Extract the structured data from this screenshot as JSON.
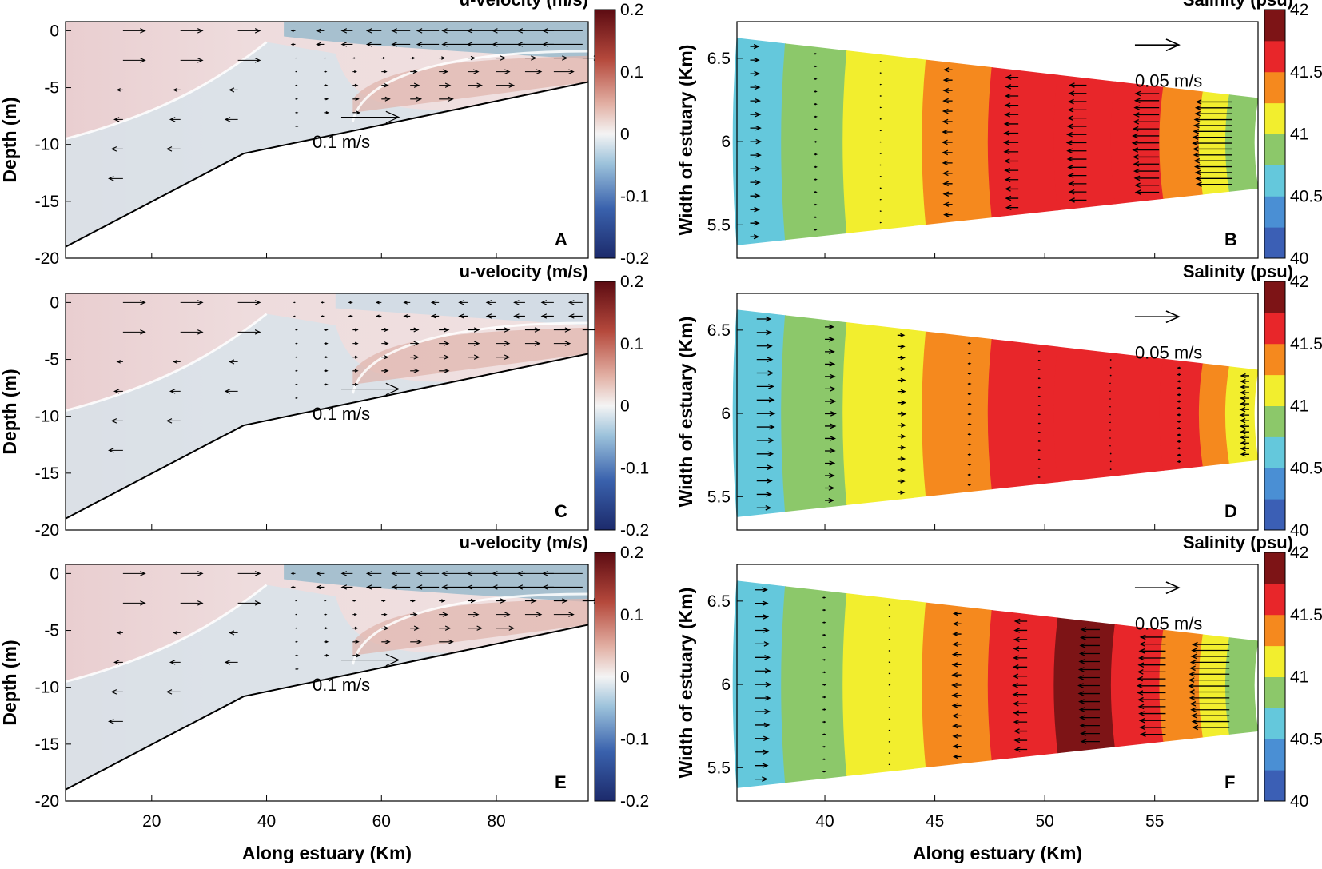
{
  "figure": {
    "xlabel": "Along estuary (Km)",
    "panels": [
      {
        "id": "A",
        "chart_data": {
          "type": "heatmap",
          "variable": "u-velocity (m/s)",
          "ylabel": "Depth (m)",
          "xlim": [
            5,
            96
          ],
          "ylim": [
            -20,
            0.8
          ],
          "yticks": [
            "0",
            "-5",
            "-10",
            "-15",
            "-20"
          ],
          "yticks_v": [
            0,
            -5,
            -10,
            -15,
            -20
          ],
          "xticks": [
            "20",
            "40",
            "60",
            "80"
          ],
          "xticks_v": [
            20,
            40,
            60,
            80
          ],
          "show_xticks": false,
          "bottom_profile": [
            [
              5,
              -19
            ],
            [
              36,
              -10.8
            ],
            [
              96,
              -4.5
            ]
          ],
          "colorbar_title": "u-velocity (m/s)",
          "colorbar_ticks": [
            "0.2",
            "0.1",
            "0",
            "-0.1",
            "-0.2"
          ],
          "colorbar_ticks_v": [
            0.2,
            0.1,
            0,
            -0.1,
            -0.2
          ],
          "colorbar_range": [
            -0.2,
            0.2
          ],
          "reference_vector_label": "0.1 m/s",
          "scenario": "A",
          "panel_label": "A"
        }
      },
      {
        "id": "B",
        "chart_data": {
          "type": "heatmap",
          "variable": "Salinity (psu)",
          "ylabel": "Width of estuary (Km)",
          "xlim": [
            36,
            59.7
          ],
          "ylim": [
            5.3,
            6.72
          ],
          "yticks": [
            "6.5",
            "6",
            "5.5"
          ],
          "yticks_v": [
            6.5,
            6,
            5.5
          ],
          "xticks": [
            "40",
            "45",
            "50",
            "55"
          ],
          "xticks_v": [
            40,
            45,
            50,
            55
          ],
          "show_xticks": false,
          "colorbar_title": "Salinity (psu)",
          "colorbar_ticks": [
            "42",
            "41.5",
            "41",
            "40.5",
            "40"
          ],
          "colorbar_ticks_v": [
            42,
            41.5,
            41,
            40.5,
            40
          ],
          "colorbar_range": [
            40,
            42
          ],
          "colorbar_levels": [
            "#3b5fb5",
            "#4a8fd4",
            "#64c8dc",
            "#8cc86a",
            "#f2ee2e",
            "#f5891e",
            "#e8262a",
            "#7d1416"
          ],
          "reference_vector_label": "0.05 m/s",
          "salinity_bands": [
            40.5,
            40.75,
            41.0,
            41.25,
            41.5,
            41.5,
            41.5,
            41.25,
            41.0,
            40.75
          ],
          "vector_columns": [
            {
              "x": 36.6,
              "len": 0.6,
              "dir": 1
            },
            {
              "x": 39.5,
              "len": 0.15,
              "dir": 1
            },
            {
              "x": 42.5,
              "len": 0.05,
              "dir": 1
            },
            {
              "x": 45.8,
              "len": 0.55,
              "dir": -1
            },
            {
              "x": 48.8,
              "len": 0.8,
              "dir": -1
            },
            {
              "x": 51.9,
              "len": 1.1,
              "dir": -1
            },
            {
              "x": 55.2,
              "len": 1.5,
              "dir": -1
            },
            {
              "x": 58.5,
              "len": 2.2,
              "dir": -1
            }
          ],
          "panel_label": "B"
        }
      },
      {
        "id": "C",
        "chart_data": {
          "type": "heatmap",
          "variable": "u-velocity (m/s)",
          "ylabel": "Depth (m)",
          "xlim": [
            5,
            96
          ],
          "ylim": [
            -20,
            0.8
          ],
          "yticks": [
            "0",
            "-5",
            "-10",
            "-15",
            "-20"
          ],
          "yticks_v": [
            0,
            -5,
            -10,
            -15,
            -20
          ],
          "xticks": [
            "20",
            "40",
            "60",
            "80"
          ],
          "xticks_v": [
            20,
            40,
            60,
            80
          ],
          "show_xticks": false,
          "bottom_profile": [
            [
              5,
              -19
            ],
            [
              36,
              -10.8
            ],
            [
              96,
              -4.5
            ]
          ],
          "colorbar_title": "u-velocity (m/s)",
          "colorbar_ticks": [
            "0.2",
            "0.1",
            "0",
            "-0.1",
            "-0.2"
          ],
          "colorbar_ticks_v": [
            0.2,
            0.1,
            0,
            -0.1,
            -0.2
          ],
          "colorbar_range": [
            -0.2,
            0.2
          ],
          "reference_vector_label": "0.1 m/s",
          "scenario": "C",
          "panel_label": "C"
        }
      },
      {
        "id": "D",
        "chart_data": {
          "type": "heatmap",
          "variable": "Salinity (psu)",
          "ylabel": "Width of estuary (Km)",
          "xlim": [
            36,
            59.7
          ],
          "ylim": [
            5.3,
            6.72
          ],
          "yticks": [
            "6.5",
            "6",
            "5.5"
          ],
          "yticks_v": [
            6.5,
            6,
            5.5
          ],
          "xticks": [
            "40",
            "45",
            "50",
            "55"
          ],
          "xticks_v": [
            40,
            45,
            50,
            55
          ],
          "show_xticks": false,
          "colorbar_title": "Salinity (psu)",
          "colorbar_ticks": [
            "42",
            "41.5",
            "41",
            "40.5",
            "40"
          ],
          "colorbar_ticks_v": [
            42,
            41.5,
            41,
            40.5,
            40
          ],
          "colorbar_range": [
            40,
            42
          ],
          "colorbar_levels": [
            "#3b5fb5",
            "#4a8fd4",
            "#64c8dc",
            "#8cc86a",
            "#f2ee2e",
            "#f5891e",
            "#e8262a",
            "#7d1416"
          ],
          "reference_vector_label": "0.05 m/s",
          "salinity_bands": [
            40.5,
            40.75,
            41.0,
            41.25,
            41.5,
            41.5,
            41.5,
            41.5,
            41.25,
            41.0
          ],
          "vector_columns": [
            {
              "x": 36.9,
              "len": 1.0,
              "dir": 1
            },
            {
              "x": 40.0,
              "len": 0.6,
              "dir": 1
            },
            {
              "x": 43.3,
              "len": 0.45,
              "dir": 1
            },
            {
              "x": 46.5,
              "len": 0.15,
              "dir": 1
            },
            {
              "x": 49.7,
              "len": 0.08,
              "dir": 1
            },
            {
              "x": 53.0,
              "len": 0.03,
              "dir": -1
            },
            {
              "x": 56.2,
              "len": 0.2,
              "dir": -1
            },
            {
              "x": 59.3,
              "len": 0.5,
              "dir": -1
            }
          ],
          "panel_label": "D"
        }
      },
      {
        "id": "E",
        "chart_data": {
          "type": "heatmap",
          "variable": "u-velocity (m/s)",
          "ylabel": "Depth (m)",
          "xlim": [
            5,
            96
          ],
          "ylim": [
            -20,
            0.8
          ],
          "yticks": [
            "0",
            "-5",
            "-10",
            "-15",
            "-20"
          ],
          "yticks_v": [
            0,
            -5,
            -10,
            -15,
            -20
          ],
          "xticks": [
            "20",
            "40",
            "60",
            "80"
          ],
          "xticks_v": [
            20,
            40,
            60,
            80
          ],
          "show_xticks": true,
          "bottom_profile": [
            [
              5,
              -19
            ],
            [
              36,
              -10.8
            ],
            [
              96,
              -4.5
            ]
          ],
          "colorbar_title": "u-velocity (m/s)",
          "colorbar_ticks": [
            "0.2",
            "0.1",
            "0",
            "-0.1",
            "-0.2"
          ],
          "colorbar_ticks_v": [
            0.2,
            0.1,
            0,
            -0.1,
            -0.2
          ],
          "colorbar_range": [
            -0.2,
            0.2
          ],
          "reference_vector_label": "0.1 m/s",
          "scenario": "E",
          "panel_label": "E"
        }
      },
      {
        "id": "F",
        "chart_data": {
          "type": "heatmap",
          "variable": "Salinity (psu)",
          "ylabel": "Width of estuary (Km)",
          "xlim": [
            36,
            59.7
          ],
          "ylim": [
            5.3,
            6.72
          ],
          "yticks": [
            "6.5",
            "6",
            "5.5"
          ],
          "yticks_v": [
            6.5,
            6,
            5.5
          ],
          "xticks": [
            "40",
            "45",
            "50",
            "55"
          ],
          "xticks_v": [
            40,
            45,
            50,
            55
          ],
          "show_xticks": true,
          "colorbar_title": "Salinity (psu)",
          "colorbar_ticks": [
            "42",
            "41.5",
            "41",
            "40.5",
            "40"
          ],
          "colorbar_ticks_v": [
            42,
            41.5,
            41,
            40.5,
            40
          ],
          "colorbar_range": [
            40,
            42
          ],
          "colorbar_levels": [
            "#3b5fb5",
            "#4a8fd4",
            "#64c8dc",
            "#8cc86a",
            "#f2ee2e",
            "#f5891e",
            "#e8262a",
            "#7d1416"
          ],
          "reference_vector_label": "0.05 m/s",
          "salinity_bands": [
            40.5,
            40.75,
            41.0,
            41.25,
            41.5,
            41.75,
            41.5,
            41.25,
            41.0,
            40.75
          ],
          "vector_columns": [
            {
              "x": 36.8,
              "len": 0.9,
              "dir": 1
            },
            {
              "x": 39.9,
              "len": 0.15,
              "dir": 1
            },
            {
              "x": 42.9,
              "len": 0.05,
              "dir": 1
            },
            {
              "x": 46.2,
              "len": 0.5,
              "dir": -1
            },
            {
              "x": 49.2,
              "len": 0.8,
              "dir": -1
            },
            {
              "x": 52.5,
              "len": 1.2,
              "dir": -1
            },
            {
              "x": 55.5,
              "len": 1.6,
              "dir": -1
            },
            {
              "x": 58.4,
              "len": 2.3,
              "dir": -1
            }
          ],
          "panel_label": "F"
        }
      }
    ]
  }
}
